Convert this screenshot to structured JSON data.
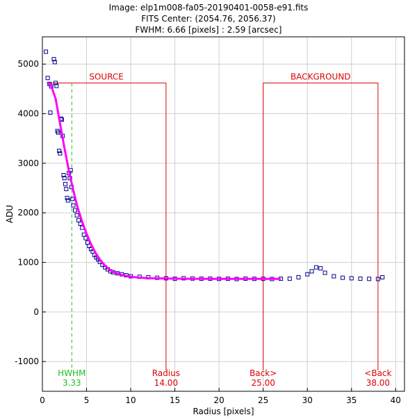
{
  "header": {
    "image_line": "Image: elp1m008-fa05-20190401-0058-e91.fits",
    "center_line": "FITS Center: (2054.76,  2056.37)",
    "fwhm_line": "FWHM: 6.66 [pixels] : 2.59 [arcsec]"
  },
  "colors": {
    "scatter": "#00008b",
    "fit": "#ff00ff",
    "aperture": "#dd0000",
    "hwhm": "#22bb22",
    "grid": "#d0d0d0"
  },
  "chart_data": {
    "type": "scatter",
    "title": "",
    "xlabel": "Radius [pixels]",
    "ylabel": "ADU",
    "xlim": [
      0,
      41
    ],
    "ylim": [
      -1600,
      5550
    ],
    "xticks": [
      0,
      5,
      10,
      15,
      20,
      25,
      30,
      35,
      40
    ],
    "yticks": [
      -1000,
      0,
      1000,
      2000,
      3000,
      4000,
      5000
    ],
    "grid": true,
    "series": [
      {
        "kind": "scatter",
        "points": [
          [
            0.4,
            5250
          ],
          [
            0.6,
            4720
          ],
          [
            0.8,
            4600
          ],
          [
            1.0,
            4550
          ],
          [
            0.9,
            4020
          ],
          [
            1.3,
            5100
          ],
          [
            1.4,
            5040
          ],
          [
            1.5,
            4620
          ],
          [
            1.6,
            4560
          ],
          [
            1.7,
            3650
          ],
          [
            1.8,
            3620
          ],
          [
            1.9,
            3250
          ],
          [
            2.0,
            3200
          ],
          [
            2.1,
            3900
          ],
          [
            2.2,
            3880
          ],
          [
            2.3,
            3550
          ],
          [
            2.4,
            2760
          ],
          [
            2.5,
            2700
          ],
          [
            2.6,
            2580
          ],
          [
            2.7,
            2480
          ],
          [
            2.8,
            2300
          ],
          [
            2.9,
            2250
          ],
          [
            3.0,
            2800
          ],
          [
            3.1,
            2700
          ],
          [
            3.2,
            2860
          ],
          [
            3.3,
            2520
          ],
          [
            3.4,
            2280
          ],
          [
            3.5,
            2150
          ],
          [
            3.7,
            2050
          ],
          [
            3.9,
            1950
          ],
          [
            4.1,
            1850
          ],
          [
            4.3,
            1780
          ],
          [
            4.5,
            1700
          ],
          [
            4.7,
            1560
          ],
          [
            4.9,
            1490
          ],
          [
            5.1,
            1400
          ],
          [
            5.3,
            1330
          ],
          [
            5.5,
            1270
          ],
          [
            5.7,
            1220
          ],
          [
            5.9,
            1150
          ],
          [
            6.1,
            1100
          ],
          [
            6.3,
            1060
          ],
          [
            6.5,
            1010
          ],
          [
            6.8,
            950
          ],
          [
            7.1,
            900
          ],
          [
            7.4,
            860
          ],
          [
            7.7,
            820
          ],
          [
            8.0,
            800
          ],
          [
            8.5,
            780
          ],
          [
            9.0,
            760
          ],
          [
            9.5,
            740
          ],
          [
            10.0,
            720
          ],
          [
            11.0,
            710
          ],
          [
            12.0,
            700
          ],
          [
            13.0,
            690
          ],
          [
            14.0,
            680
          ],
          [
            15.0,
            670
          ],
          [
            16.0,
            680
          ],
          [
            17.0,
            675
          ],
          [
            18.0,
            670
          ],
          [
            19.0,
            672
          ],
          [
            20.0,
            668
          ],
          [
            21.0,
            670
          ],
          [
            22.0,
            665
          ],
          [
            23.0,
            672
          ],
          [
            24.0,
            668
          ],
          [
            25.0,
            670
          ],
          [
            26.0,
            665
          ],
          [
            27.0,
            670
          ],
          [
            28.0,
            672
          ],
          [
            29.0,
            700
          ],
          [
            30.0,
            760
          ],
          [
            30.5,
            820
          ],
          [
            31.0,
            900
          ],
          [
            31.5,
            880
          ],
          [
            32.0,
            790
          ],
          [
            33.0,
            720
          ],
          [
            34.0,
            690
          ],
          [
            35.0,
            680
          ],
          [
            36.0,
            672
          ],
          [
            37.0,
            668
          ],
          [
            38.0,
            665
          ],
          [
            38.5,
            700
          ]
        ]
      },
      {
        "kind": "fit",
        "points": [
          [
            0.6,
            4620
          ],
          [
            1.0,
            4560
          ],
          [
            1.5,
            4300
          ],
          [
            2.0,
            3800
          ],
          [
            2.5,
            3300
          ],
          [
            3.0,
            2850
          ],
          [
            3.5,
            2450
          ],
          [
            4.0,
            2100
          ],
          [
            4.5,
            1820
          ],
          [
            5.0,
            1580
          ],
          [
            5.5,
            1370
          ],
          [
            6.0,
            1200
          ],
          [
            6.5,
            1060
          ],
          [
            7.0,
            950
          ],
          [
            7.5,
            870
          ],
          [
            8.0,
            810
          ],
          [
            9.0,
            745
          ],
          [
            10.0,
            710
          ],
          [
            11.0,
            692
          ],
          [
            12.0,
            682
          ],
          [
            14.0,
            674
          ],
          [
            16.0,
            670
          ],
          [
            20.0,
            668
          ],
          [
            27.0,
            668
          ]
        ]
      }
    ],
    "aperture_top": 4620,
    "markers": [
      {
        "x": 3.33,
        "label": "HWHM",
        "value": "3.33",
        "role": "hwhm"
      },
      {
        "x": 14.0,
        "label": "Radius",
        "value": "14.00",
        "role": "aperture"
      },
      {
        "x": 25.0,
        "label": "Back>",
        "value": "25.00",
        "role": "aperture"
      },
      {
        "x": 38.0,
        "label": "<Back",
        "value": "38.00",
        "role": "aperture"
      }
    ],
    "regions": [
      {
        "label": "SOURCE",
        "x0": 0.5,
        "x1": 14.0
      },
      {
        "label": "BACKGROUND",
        "x0": 25.0,
        "x1": 38.0
      }
    ]
  }
}
